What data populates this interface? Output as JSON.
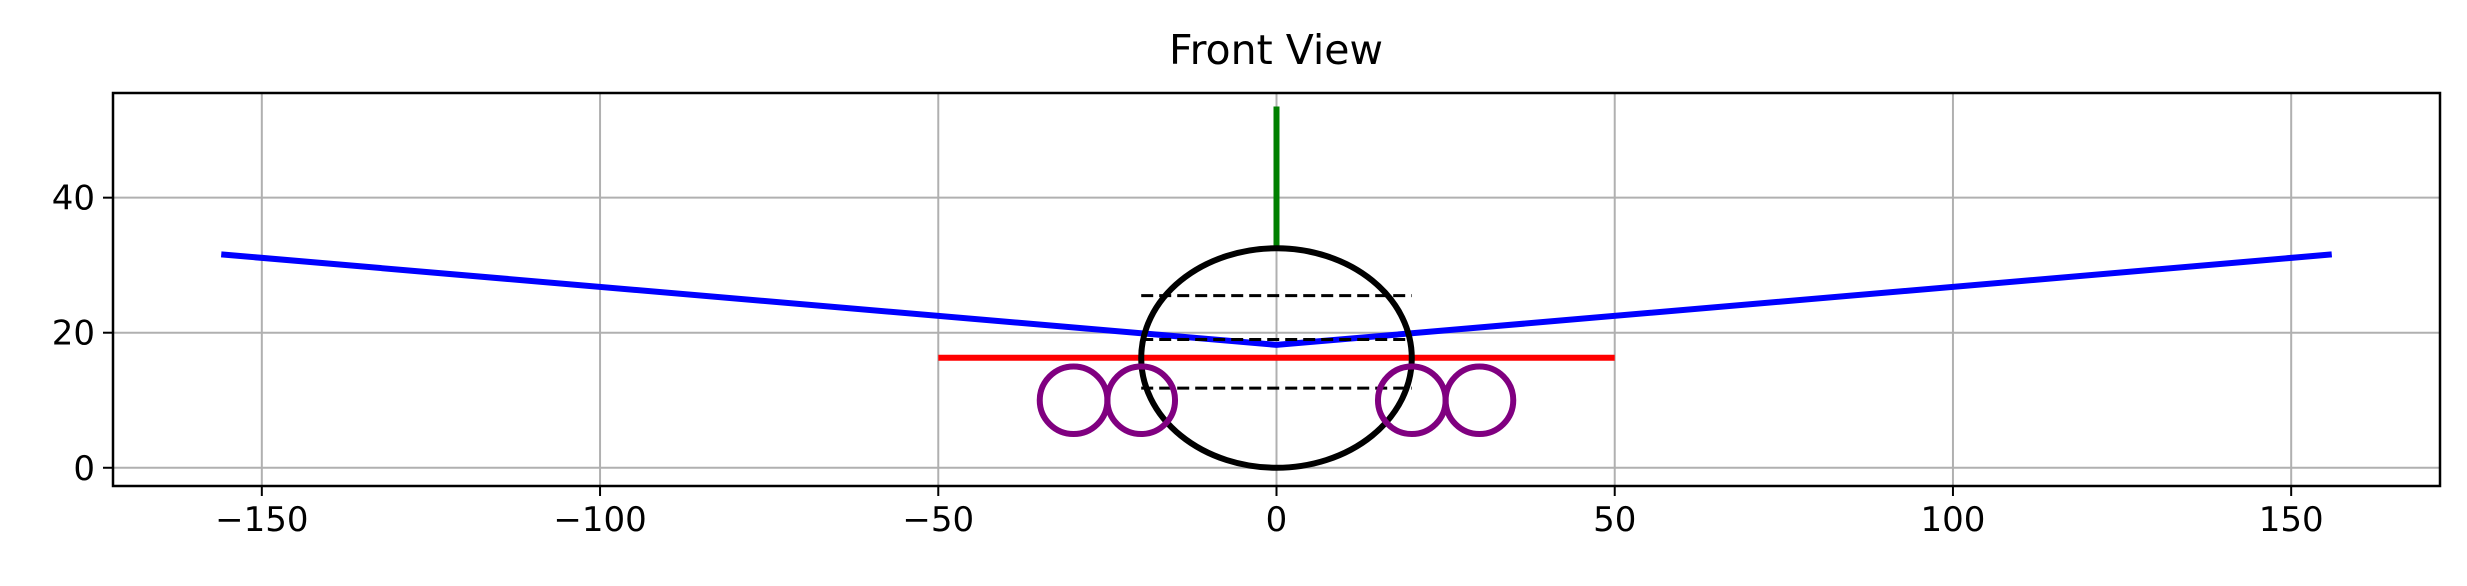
{
  "chart_data": {
    "type": "line",
    "title": "Front View",
    "xlabel": "",
    "ylabel": "",
    "xlim": [
      -172,
      172
    ],
    "ylim": [
      -2.7,
      55.5
    ],
    "xticks": [
      -150,
      -100,
      -50,
      0,
      50,
      100,
      150
    ],
    "xtick_labels": [
      "−150",
      "−100",
      "−50",
      "0",
      "50",
      "100",
      "150"
    ],
    "yticks": [
      0,
      20,
      40
    ],
    "ytick_labels": [
      "0",
      "20",
      "40"
    ],
    "grid": true,
    "legend": "none",
    "series": [
      {
        "role": "wing",
        "kind": "polyline",
        "color": "#0000ff",
        "style": "solid",
        "x": [
          -156,
          0,
          156
        ],
        "y": [
          31.6,
          18.2,
          31.6
        ]
      },
      {
        "role": "horizontal-tail",
        "kind": "polyline",
        "color": "#ff0000",
        "style": "solid",
        "x": [
          -50,
          50
        ],
        "y": [
          16.3,
          16.3
        ]
      },
      {
        "role": "vertical-tail",
        "kind": "polyline",
        "color": "#008000",
        "style": "solid",
        "x": [
          0,
          0
        ],
        "y": [
          32.5,
          53.5
        ]
      },
      {
        "role": "fuselage",
        "kind": "ellipse",
        "color": "#000000",
        "style": "solid",
        "cx": 0,
        "cy": 16.25,
        "rx": 20,
        "ry": 16.25
      },
      {
        "role": "fuselage-upper-line",
        "kind": "polyline",
        "color": "#000000",
        "style": "dashed",
        "x": [
          -20,
          20
        ],
        "y": [
          25.5,
          25.5
        ]
      },
      {
        "role": "fuselage-mid-line",
        "kind": "polyline",
        "color": "#000000",
        "style": "dashed",
        "x": [
          -20,
          20
        ],
        "y": [
          19,
          19
        ]
      },
      {
        "role": "fuselage-lower-line",
        "kind": "polyline",
        "color": "#000000",
        "style": "dashed",
        "x": [
          -20,
          20
        ],
        "y": [
          11.8,
          11.8
        ]
      },
      {
        "role": "engine-1",
        "kind": "circle",
        "color": "#800080",
        "style": "solid",
        "cx": -30,
        "cy": 10,
        "r": 5
      },
      {
        "role": "engine-2",
        "kind": "circle",
        "color": "#800080",
        "style": "solid",
        "cx": -20,
        "cy": 10,
        "r": 5
      },
      {
        "role": "engine-3",
        "kind": "circle",
        "color": "#800080",
        "style": "solid",
        "cx": 20,
        "cy": 10,
        "r": 5
      },
      {
        "role": "engine-4",
        "kind": "circle",
        "color": "#800080",
        "style": "solid",
        "cx": 30,
        "cy": 10,
        "r": 5
      }
    ]
  }
}
